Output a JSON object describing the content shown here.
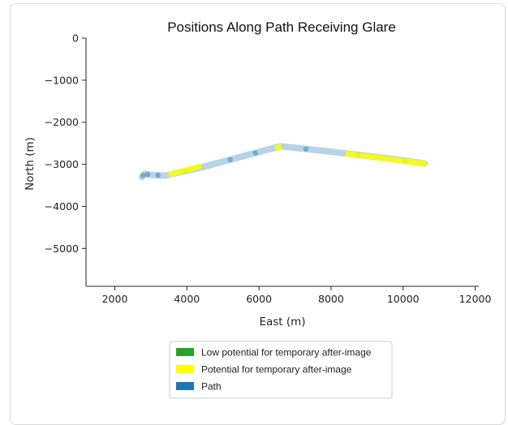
{
  "chart_data": {
    "type": "line",
    "title": "Positions Along Path Receiving Glare",
    "xlabel": "East (m)",
    "ylabel": "North (m)",
    "xlim": [
      1200,
      12100
    ],
    "ylim": [
      -5900,
      0
    ],
    "xticks": [
      2000,
      4000,
      6000,
      8000,
      10000,
      12000
    ],
    "yticks": [
      0,
      -1000,
      -2000,
      -3000,
      -4000,
      -5000
    ],
    "xtick_labels": [
      "2000",
      "4000",
      "6000",
      "8000",
      "10000",
      "12000"
    ],
    "ytick_labels": [
      "0",
      "−1000",
      "−2000",
      "−3000",
      "−4000",
      "−5000"
    ],
    "grid": false,
    "legend_position": "bottom-center",
    "series": [
      {
        "name": "Path",
        "color": "#1f77b4",
        "x": [
          2750,
          2820,
          3000,
          3400,
          4500,
          6600,
          8000,
          9500,
          10600
        ],
        "y": [
          -3300,
          -3230,
          -3250,
          -3270,
          -3050,
          -2570,
          -2700,
          -2850,
          -2980
        ]
      },
      {
        "name": "Potential for temporary after-image",
        "color": "#ffff00",
        "segments": [
          {
            "x": [
              3500,
              4400
            ],
            "y": [
              -3250,
              -3040
            ]
          },
          {
            "x": [
              6450,
              6620
            ],
            "y": [
              -2620,
              -2570
            ]
          },
          {
            "x": [
              8400,
              10650
            ],
            "y": [
              -2750,
              -2990
            ]
          }
        ]
      },
      {
        "name": "Low potential for temporary after-image",
        "color": "#2ca02c",
        "segments": []
      }
    ],
    "legend": [
      {
        "label": "Low potential for temporary after-image",
        "color": "#2ca02c"
      },
      {
        "label": "Potential for temporary after-image",
        "color": "#ffff00"
      },
      {
        "label": "Path",
        "color": "#1f77b4"
      }
    ]
  }
}
